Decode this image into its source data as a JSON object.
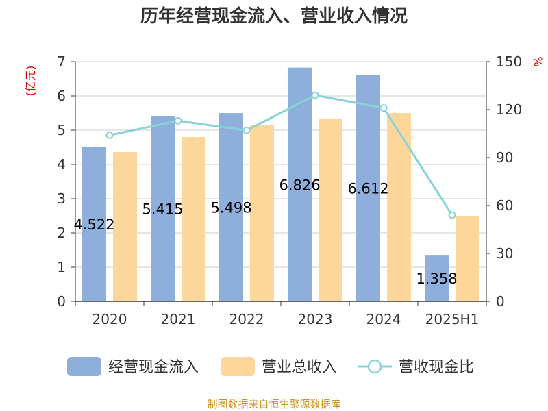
{
  "chart_data": {
    "type": "bar",
    "title": "历年经营现金流入、营业收入情况",
    "categories": [
      "2020",
      "2021",
      "2022",
      "2023",
      "2024",
      "2025H1"
    ],
    "series": [
      {
        "name": "经营现金流入",
        "type": "bar",
        "axis": "left",
        "color": "#8eaedb",
        "values": [
          4.522,
          5.415,
          5.498,
          6.826,
          6.612,
          1.358
        ],
        "labels": [
          "4.522",
          "5.415",
          "5.498",
          "6.826",
          "6.612",
          "1.358"
        ]
      },
      {
        "name": "营业总收入",
        "type": "bar",
        "axis": "left",
        "color": "#fdd699",
        "values": [
          4.36,
          4.8,
          5.14,
          5.33,
          5.5,
          2.5
        ]
      },
      {
        "name": "营收现金比",
        "type": "line",
        "axis": "right",
        "color": "#88d3d6",
        "values": [
          104,
          113,
          107,
          129,
          121,
          54
        ]
      }
    ],
    "y_left": {
      "unit": "(亿元)",
      "ylim": [
        0,
        7
      ],
      "ticks": [
        "0",
        "1",
        "2",
        "3",
        "4",
        "5",
        "6",
        "7"
      ]
    },
    "y_right": {
      "unit": "%",
      "ylim": [
        0,
        150
      ],
      "ticks": [
        "0",
        "30",
        "60",
        "90",
        "120",
        "150"
      ]
    },
    "grid": true,
    "legend_position": "bottom"
  },
  "footer": {
    "source": "制图数据来自恒生聚源数据库"
  }
}
